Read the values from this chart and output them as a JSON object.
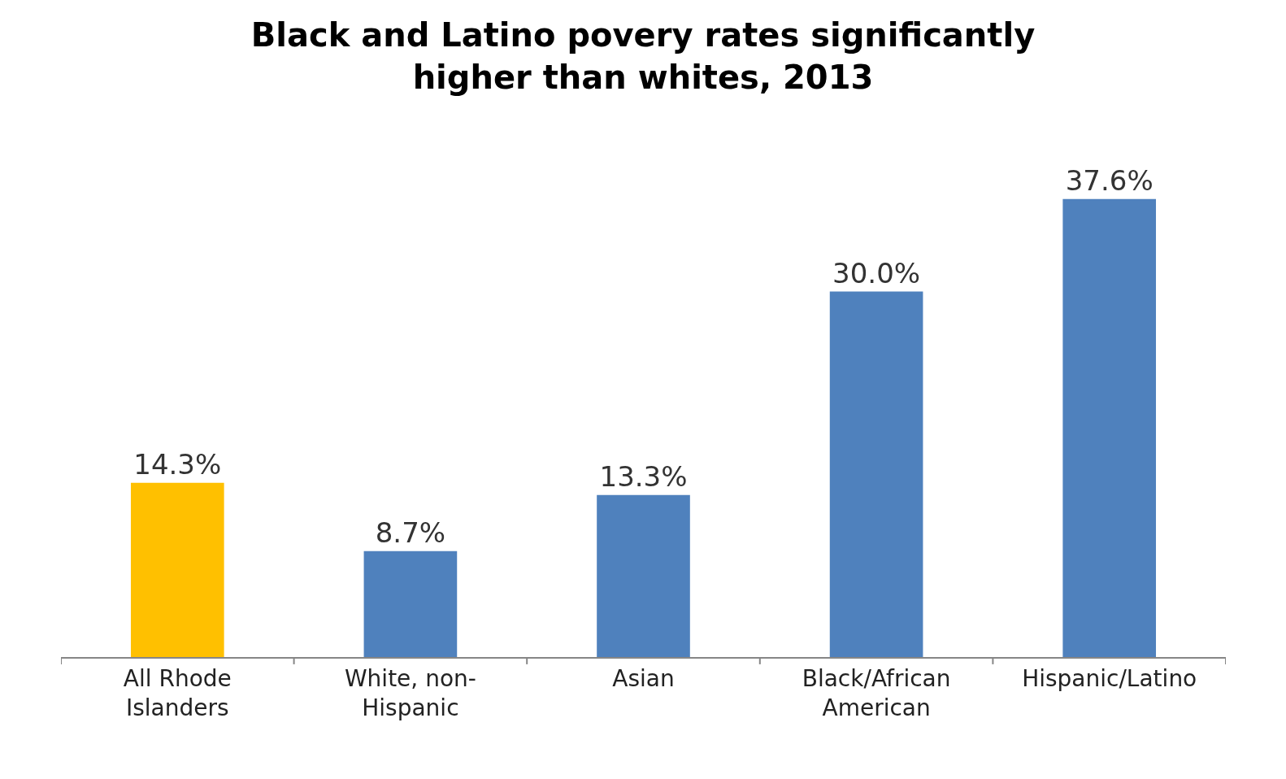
{
  "chart_data": {
    "type": "bar",
    "title": "Black and Latino povery rates significantly higher than whites, 2013",
    "categories": [
      "All Rhode Islanders",
      "White, non-Hispanic",
      "Asian",
      "Black/African American",
      "Hispanic/Latino"
    ],
    "values": [
      14.3,
      8.7,
      13.3,
      30.0,
      37.6
    ],
    "colors": [
      "#ffc000",
      "#4f81bd",
      "#4f81bd",
      "#4f81bd",
      "#4f81bd"
    ],
    "value_labels": [
      "14.3%",
      "8.7%",
      "13.3%",
      "30.0%",
      "37.6%"
    ],
    "tick_labels": "x"
  }
}
